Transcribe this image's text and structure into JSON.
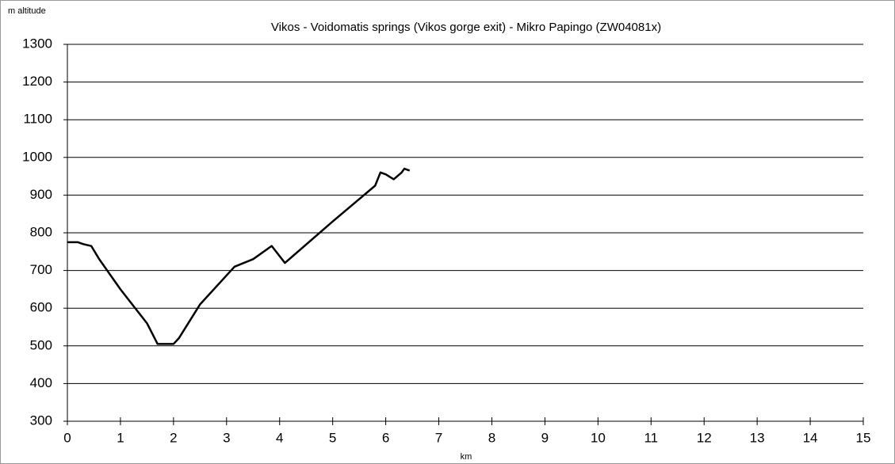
{
  "chart_data": {
    "type": "line",
    "title": "Vikos - Voidomatis springs (Vikos gorge exit) - Mikro Papingo (ZW04081x)",
    "y_label": "m altitude",
    "x_label": "km",
    "x": [
      0,
      0.2,
      0.3,
      0.45,
      0.6,
      1.0,
      1.5,
      1.7,
      2.0,
      2.1,
      2.5,
      3.15,
      3.5,
      3.6,
      3.85,
      4.1,
      5.0,
      5.8,
      5.9,
      6.0,
      6.15,
      6.3,
      6.35,
      6.45
    ],
    "series": [
      {
        "name": "altitude",
        "color": "#000000",
        "values": [
          775,
          775,
          770,
          765,
          730,
          650,
          560,
          505,
          505,
          520,
          610,
          710,
          730,
          740,
          765,
          720,
          830,
          925,
          960,
          955,
          942,
          960,
          970,
          965
        ]
      }
    ],
    "xlim": [
      0,
      15
    ],
    "xticks": [
      0,
      1,
      2,
      3,
      4,
      5,
      6,
      7,
      8,
      9,
      10,
      11,
      12,
      13,
      14,
      15
    ],
    "ylim": [
      300,
      1300
    ],
    "yticks": [
      300,
      400,
      500,
      600,
      700,
      800,
      900,
      1000,
      1100,
      1200,
      1300
    ],
    "grid": true
  }
}
